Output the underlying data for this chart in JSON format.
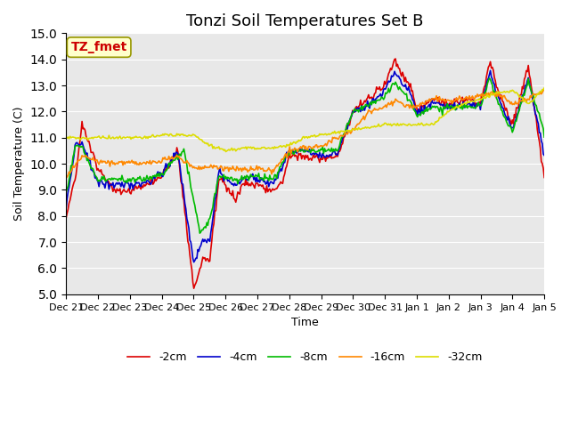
{
  "title": "Tonzi Soil Temperatures Set B",
  "xlabel": "Time",
  "ylabel": "Soil Temperature (C)",
  "ylim": [
    5.0,
    15.0
  ],
  "yticks": [
    5.0,
    6.0,
    7.0,
    8.0,
    9.0,
    10.0,
    11.0,
    12.0,
    13.0,
    14.0,
    15.0
  ],
  "annotation_text": "TZ_fmet",
  "annotation_color": "#cc0000",
  "annotation_bg": "#ffffcc",
  "bg_color": "#e8e8e8",
  "series_colors": {
    "-2cm": "#dd0000",
    "-4cm": "#0000cc",
    "-8cm": "#00bb00",
    "-16cm": "#ff8800",
    "-32cm": "#dddd00"
  },
  "legend_labels": [
    "-2cm",
    "-4cm",
    "-8cm",
    "-16cm",
    "-32cm"
  ],
  "xtick_labels": [
    "Dec 21",
    "Dec 22",
    "Dec 23",
    "Dec 24",
    "Dec 25",
    "Dec 26",
    "Dec 27",
    "Dec 28",
    "Dec 29",
    "Dec 30",
    "Dec 31",
    "Jan 1",
    "Jan 2",
    "Jan 3",
    "Jan 4",
    "Jan 5"
  ],
  "linewidth": 1.2,
  "key_t": [
    0,
    0.3,
    0.5,
    1.0,
    1.5,
    2.0,
    2.5,
    3.0,
    3.5,
    4.0,
    4.3,
    4.5,
    4.8,
    5.0,
    5.3,
    5.5,
    5.8,
    6.0,
    6.3,
    6.5,
    6.8,
    7.0,
    7.5,
    8.0,
    8.5,
    9.0,
    9.5,
    10.0,
    10.3,
    10.5,
    10.8,
    11.0,
    11.5,
    12.0,
    12.5,
    13.0,
    13.3,
    13.5,
    13.8,
    14.0,
    14.5,
    15.0
  ],
  "key_v2": [
    8.0,
    9.5,
    11.6,
    9.8,
    9.0,
    9.0,
    9.2,
    9.5,
    10.5,
    5.3,
    6.4,
    6.3,
    9.5,
    9.2,
    8.7,
    9.2,
    9.3,
    9.2,
    9.0,
    9.0,
    9.3,
    10.3,
    10.3,
    10.2,
    10.3,
    12.0,
    12.5,
    13.0,
    14.0,
    13.5,
    13.0,
    12.0,
    12.5,
    12.3,
    12.5,
    12.3,
    13.9,
    13.0,
    12.0,
    11.5,
    13.7,
    9.5
  ],
  "key_t4": [
    0,
    0.3,
    0.5,
    1.0,
    1.5,
    2.0,
    2.5,
    3.0,
    3.5,
    4.0,
    4.3,
    4.5,
    4.8,
    5.0,
    5.3,
    5.5,
    5.8,
    6.0,
    6.5,
    7.0,
    7.5,
    8.0,
    8.5,
    9.0,
    9.5,
    10.0,
    10.3,
    10.5,
    10.8,
    11.0,
    11.5,
    12.0,
    12.5,
    13.0,
    13.3,
    13.5,
    13.8,
    14.0,
    14.5,
    15.0
  ],
  "key_v4": [
    8.3,
    10.8,
    10.8,
    9.3,
    9.2,
    9.2,
    9.3,
    9.6,
    10.5,
    6.2,
    7.1,
    7.0,
    9.8,
    9.4,
    9.2,
    9.4,
    9.5,
    9.4,
    9.2,
    10.5,
    10.5,
    10.3,
    10.4,
    12.0,
    12.3,
    12.8,
    13.5,
    13.2,
    12.7,
    11.9,
    12.3,
    12.2,
    12.3,
    12.2,
    13.5,
    12.7,
    11.8,
    11.3,
    13.3,
    10.3
  ],
  "key_t8": [
    0,
    0.3,
    0.5,
    1.0,
    1.5,
    2.0,
    2.5,
    3.0,
    3.7,
    4.2,
    4.5,
    4.8,
    5.0,
    5.3,
    5.5,
    5.8,
    6.0,
    6.5,
    7.0,
    7.5,
    8.0,
    8.5,
    9.0,
    9.5,
    10.0,
    10.3,
    10.5,
    10.8,
    11.0,
    11.5,
    12.0,
    12.5,
    13.0,
    13.3,
    13.5,
    13.8,
    14.0,
    14.5,
    15.0
  ],
  "key_v8": [
    8.8,
    10.7,
    10.6,
    9.4,
    9.4,
    9.4,
    9.4,
    9.6,
    10.5,
    7.4,
    7.8,
    9.5,
    9.5,
    9.4,
    9.4,
    9.5,
    9.5,
    9.4,
    10.5,
    10.5,
    10.5,
    10.5,
    12.0,
    12.2,
    12.6,
    13.1,
    12.9,
    12.4,
    11.8,
    12.2,
    12.1,
    12.2,
    12.2,
    13.3,
    12.5,
    11.7,
    11.2,
    13.2,
    11.2
  ],
  "key_t16": [
    0,
    0.5,
    1.0,
    1.5,
    2.0,
    2.5,
    3.0,
    3.5,
    4.0,
    4.5,
    5.0,
    5.5,
    6.0,
    6.5,
    7.0,
    7.5,
    8.0,
    8.5,
    9.0,
    9.5,
    10.0,
    10.3,
    10.5,
    10.8,
    11.0,
    11.5,
    12.0,
    12.5,
    13.0,
    13.5,
    14.0,
    14.5,
    15.0
  ],
  "key_v16": [
    9.5,
    10.3,
    10.1,
    10.0,
    10.1,
    10.0,
    10.1,
    10.3,
    9.8,
    9.9,
    9.8,
    9.8,
    9.8,
    9.7,
    10.5,
    10.6,
    10.7,
    11.0,
    11.3,
    12.0,
    12.2,
    12.4,
    12.3,
    12.2,
    12.2,
    12.5,
    12.4,
    12.5,
    12.6,
    12.7,
    12.3,
    12.5,
    12.8
  ],
  "key_t32": [
    0,
    0.5,
    1.0,
    1.5,
    2.0,
    2.5,
    3.0,
    3.5,
    4.0,
    4.5,
    5.0,
    5.5,
    6.0,
    6.5,
    7.0,
    7.5,
    8.0,
    8.5,
    9.0,
    9.5,
    10.0,
    10.5,
    11.0,
    11.5,
    12.0,
    12.5,
    13.0,
    13.5,
    14.0,
    14.5,
    15.0
  ],
  "key_v32": [
    11.0,
    11.0,
    11.0,
    11.0,
    11.0,
    11.0,
    11.1,
    11.1,
    11.1,
    10.7,
    10.5,
    10.6,
    10.6,
    10.6,
    10.7,
    11.0,
    11.1,
    11.2,
    11.3,
    11.4,
    11.5,
    11.5,
    11.5,
    11.5,
    12.0,
    12.3,
    12.5,
    12.7,
    12.8,
    12.3,
    12.9
  ]
}
